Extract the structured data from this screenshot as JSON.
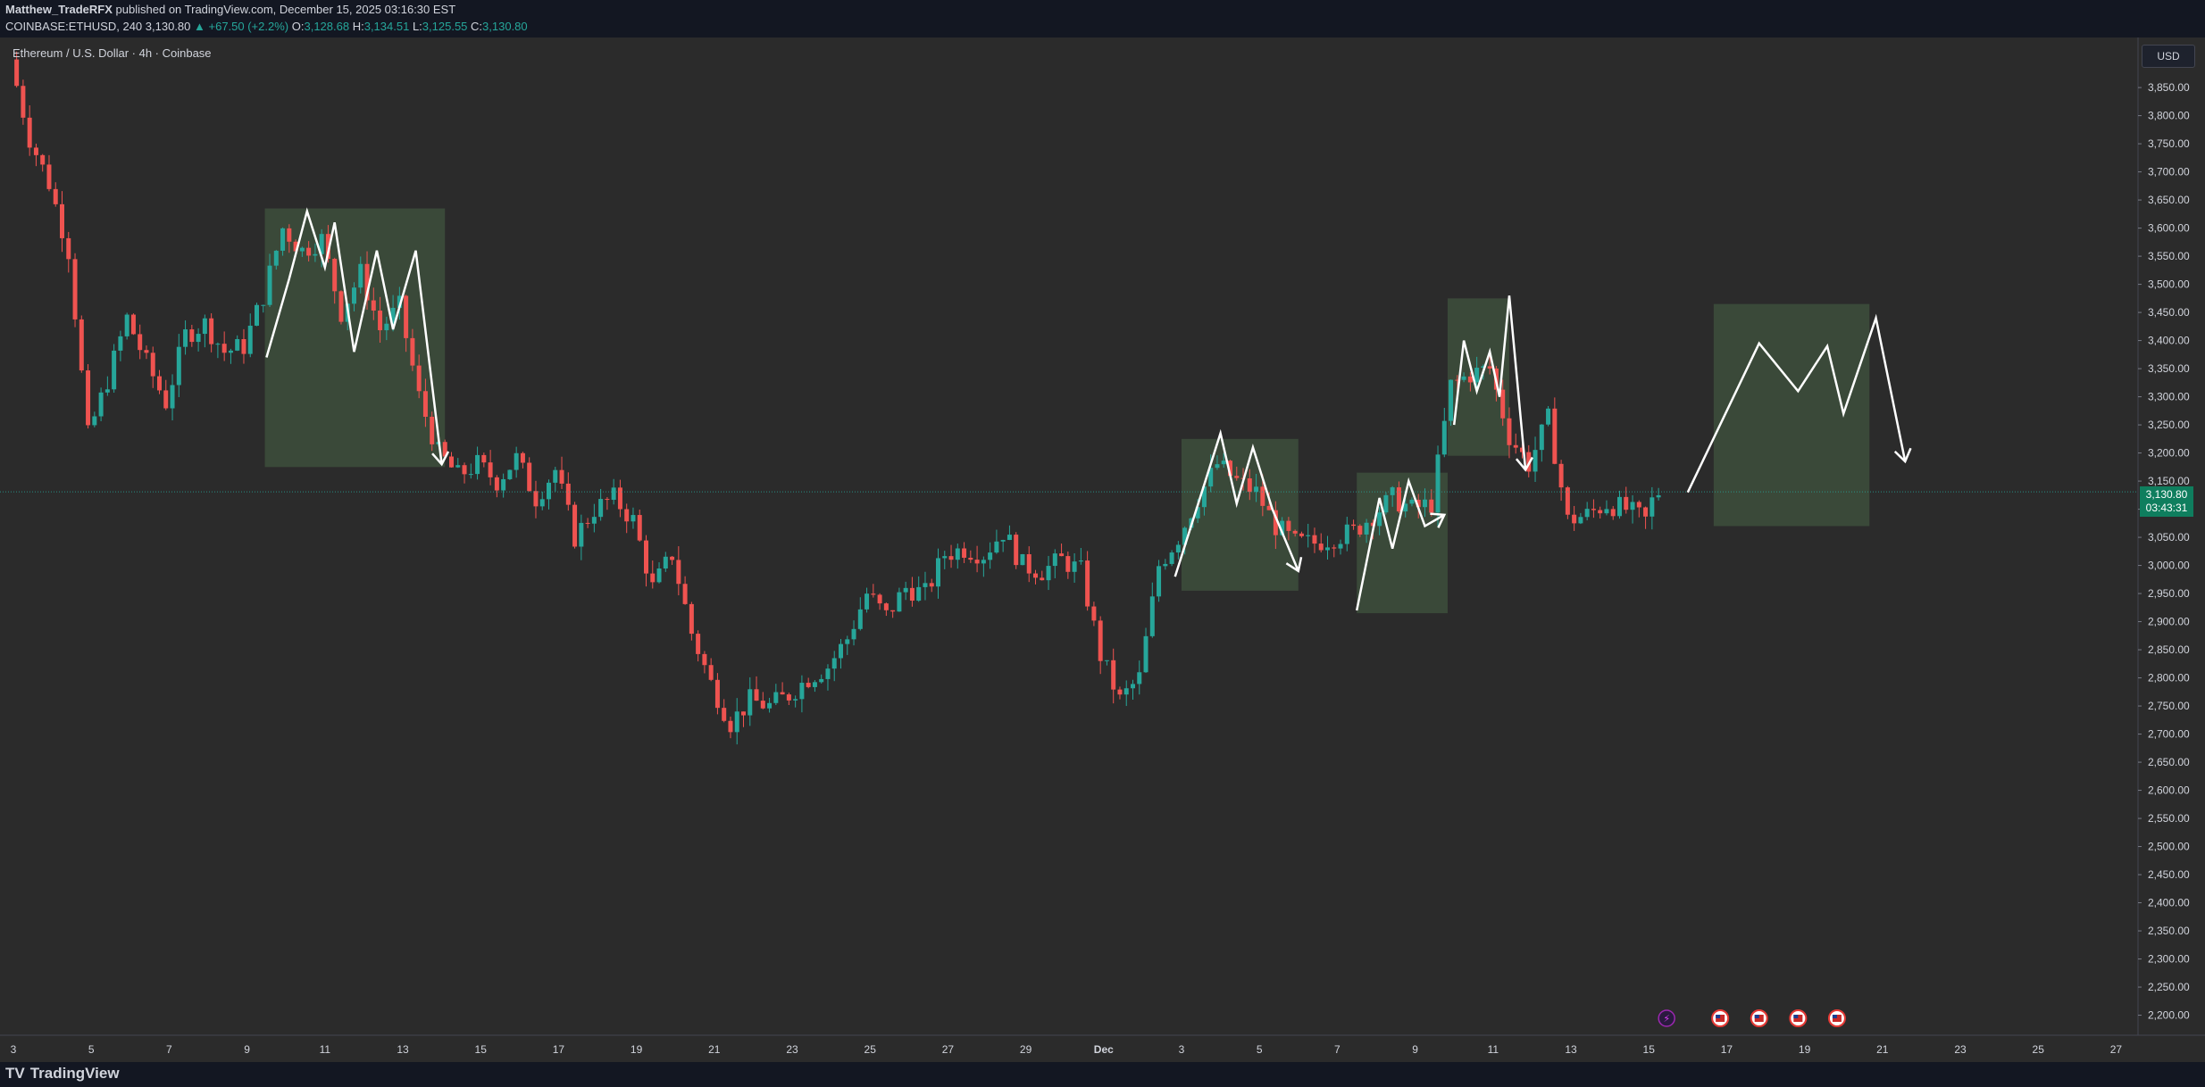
{
  "header": {
    "publisher": "Matthew_TradeRFX",
    "published_text": "published on TradingView.com, December 15, 2025 03:16:30 EST",
    "symbol": "COINBASE:ETHUSD, 240",
    "last": "3,130.80",
    "change": "▲ +67.50 (+2.2%)",
    "o_label": "O:",
    "o": "3,128.68",
    "h_label": "H:",
    "h": "3,134.51",
    "l_label": "L:",
    "l": "3,125.55",
    "c_label": "C:",
    "c": "3,130.80"
  },
  "toolbar": {
    "currency_button": "USD"
  },
  "price_tag": {
    "price": "3,130.80",
    "countdown": "03:43:31"
  },
  "footer": {
    "logo_mark": "TV",
    "logo_text": "TradingView"
  },
  "colors": {
    "up": "#26a69a",
    "down": "#ef5350",
    "zone_fill": "#3d4f3c",
    "background": "#2b2b2b",
    "drawing": "#ffffff",
    "last_price_line": "#26a69a"
  },
  "chart_data": {
    "type": "candlestick",
    "title": "Ethereum / U.S. Dollar · 4h · Coinbase",
    "symbol": "COINBASE:ETHUSD",
    "interval": "4h",
    "ylim": [
      2185,
      3920
    ],
    "xlim": [
      "2025-11-03",
      "2025-12-28"
    ],
    "last_price": 3130.8,
    "y_ticks": [
      "3,850.00",
      "3,800.00",
      "3,750.00",
      "3,700.00",
      "3,650.00",
      "3,600.00",
      "3,550.00",
      "3,500.00",
      "3,450.00",
      "3,400.00",
      "3,350.00",
      "3,300.00",
      "3,250.00",
      "3,200.00",
      "3,150.00",
      "3,100.00",
      "3,050.00",
      "3,000.00",
      "2,950.00",
      "2,900.00",
      "2,850.00",
      "2,800.00",
      "2,750.00",
      "2,700.00",
      "2,650.00",
      "2,600.00",
      "2,550.00",
      "2,500.00",
      "2,450.00",
      "2,400.00",
      "2,350.00",
      "2,300.00",
      "2,250.00",
      "2,200.00"
    ],
    "x_ticks": [
      {
        "label": "3",
        "date": "2025-11-03"
      },
      {
        "label": "5",
        "date": "2025-11-05"
      },
      {
        "label": "7",
        "date": "2025-11-07"
      },
      {
        "label": "9",
        "date": "2025-11-09"
      },
      {
        "label": "11",
        "date": "2025-11-11"
      },
      {
        "label": "13",
        "date": "2025-11-13"
      },
      {
        "label": "15",
        "date": "2025-11-15"
      },
      {
        "label": "17",
        "date": "2025-11-17"
      },
      {
        "label": "19",
        "date": "2025-11-19"
      },
      {
        "label": "21",
        "date": "2025-11-21"
      },
      {
        "label": "23",
        "date": "2025-11-23"
      },
      {
        "label": "25",
        "date": "2025-11-25"
      },
      {
        "label": "27",
        "date": "2025-11-27"
      },
      {
        "label": "29",
        "date": "2025-11-29"
      },
      {
        "label": "Dec",
        "date": "2025-12-01"
      },
      {
        "label": "3",
        "date": "2025-12-03"
      },
      {
        "label": "5",
        "date": "2025-12-05"
      },
      {
        "label": "7",
        "date": "2025-12-07"
      },
      {
        "label": "9",
        "date": "2025-12-09"
      },
      {
        "label": "11",
        "date": "2025-12-11"
      },
      {
        "label": "13",
        "date": "2025-12-13"
      },
      {
        "label": "15",
        "date": "2025-12-15"
      },
      {
        "label": "17",
        "date": "2025-12-17"
      },
      {
        "label": "19",
        "date": "2025-12-19"
      },
      {
        "label": "21",
        "date": "2025-12-21"
      },
      {
        "label": "23",
        "date": "2025-12-23"
      },
      {
        "label": "25",
        "date": "2025-12-25"
      },
      {
        "label": "27",
        "date": "2025-12-27"
      }
    ],
    "price_path": [
      [
        "2025-11-03",
        3900
      ],
      [
        "2025-11-03T12:00",
        3760
      ],
      [
        "2025-11-04",
        3680
      ],
      [
        "2025-11-04T12:00",
        3560
      ],
      [
        "2025-11-05",
        3230
      ],
      [
        "2025-11-05T12:00",
        3330
      ],
      [
        "2025-11-06",
        3440
      ],
      [
        "2025-11-06T12:00",
        3360
      ],
      [
        "2025-11-07",
        3290
      ],
      [
        "2025-11-07T12:00",
        3410
      ],
      [
        "2025-11-08",
        3430
      ],
      [
        "2025-11-08T12:00",
        3380
      ],
      [
        "2025-11-09",
        3390
      ],
      [
        "2025-11-09T12:00",
        3480
      ],
      [
        "2025-11-10",
        3600
      ],
      [
        "2025-11-10T12:00",
        3560
      ],
      [
        "2025-11-11",
        3580
      ],
      [
        "2025-11-11T12:00",
        3450
      ],
      [
        "2025-11-12",
        3520
      ],
      [
        "2025-11-12T12:00",
        3420
      ],
      [
        "2025-11-13",
        3460
      ],
      [
        "2025-11-13T12:00",
        3300
      ],
      [
        "2025-11-14",
        3200
      ],
      [
        "2025-11-14T12:00",
        3160
      ],
      [
        "2025-11-15",
        3180
      ],
      [
        "2025-11-15T12:00",
        3150
      ],
      [
        "2025-11-16",
        3190
      ],
      [
        "2025-11-16T12:00",
        3120
      ],
      [
        "2025-11-17",
        3170
      ],
      [
        "2025-11-17T12:00",
        3050
      ],
      [
        "2025-11-18",
        3100
      ],
      [
        "2025-11-18T12:00",
        3120
      ],
      [
        "2025-11-19",
        3080
      ],
      [
        "2025-11-19T12:00",
        2960
      ],
      [
        "2025-11-20",
        3020
      ],
      [
        "2025-11-20T12:00",
        2880
      ],
      [
        "2025-11-21",
        2790
      ],
      [
        "2025-11-21T12:00",
        2720
      ],
      [
        "2025-11-22",
        2760
      ],
      [
        "2025-11-22T12:00",
        2750
      ],
      [
        "2025-11-23",
        2770
      ],
      [
        "2025-11-23T12:00",
        2800
      ],
      [
        "2025-11-24",
        2820
      ],
      [
        "2025-11-24T12:00",
        2870
      ],
      [
        "2025-11-25",
        2950
      ],
      [
        "2025-11-25T12:00",
        2910
      ],
      [
        "2025-11-26",
        2960
      ],
      [
        "2025-11-26T12:00",
        2950
      ],
      [
        "2025-11-27",
        3020
      ],
      [
        "2025-11-27T12:00",
        3030
      ],
      [
        "2025-11-28",
        3020
      ],
      [
        "2025-11-28T12:00",
        3060
      ],
      [
        "2025-11-29",
        3000
      ],
      [
        "2025-11-29T12:00",
        2990
      ],
      [
        "2025-11-30",
        3010
      ],
      [
        "2025-11-30T12:00",
        2990
      ],
      [
        "2025-12-01",
        2840
      ],
      [
        "2025-12-01T12:00",
        2760
      ],
      [
        "2025-12-02",
        2800
      ],
      [
        "2025-12-02T12:00",
        3000
      ],
      [
        "2025-12-03",
        3050
      ],
      [
        "2025-12-03T12:00",
        3120
      ],
      [
        "2025-12-04",
        3180
      ],
      [
        "2025-12-04T12:00",
        3150
      ],
      [
        "2025-12-05",
        3130
      ],
      [
        "2025-12-05T12:00",
        3070
      ],
      [
        "2025-12-06",
        3040
      ],
      [
        "2025-12-06T12:00",
        3040
      ],
      [
        "2025-12-07",
        3050
      ],
      [
        "2025-12-07T12:00",
        3060
      ],
      [
        "2025-12-08",
        3090
      ],
      [
        "2025-12-08T12:00",
        3120
      ],
      [
        "2025-12-09",
        3100
      ],
      [
        "2025-12-09T12:00",
        3110
      ],
      [
        "2025-12-10",
        3320
      ],
      [
        "2025-12-10T12:00",
        3340
      ],
      [
        "2025-12-11",
        3350
      ],
      [
        "2025-12-11T12:00",
        3230
      ],
      [
        "2025-12-12",
        3180
      ],
      [
        "2025-12-12T12:00",
        3260
      ],
      [
        "2025-12-13",
        3080
      ],
      [
        "2025-12-13T12:00",
        3090
      ],
      [
        "2025-12-14",
        3110
      ],
      [
        "2025-12-14T12:00",
        3100
      ],
      [
        "2025-12-15",
        3080
      ],
      [
        "2025-12-15T06:00",
        3130.8
      ]
    ],
    "zones": [
      {
        "start": "2025-11-09T11:00",
        "end": "2025-11-14T02:00",
        "top": 3635,
        "bottom": 3175
      },
      {
        "start": "2025-12-03T00:00",
        "end": "2025-12-06T00:00",
        "top": 3225,
        "bottom": 2955
      },
      {
        "start": "2025-12-07T12:00",
        "end": "2025-12-09T20:00",
        "top": 3165,
        "bottom": 2915
      },
      {
        "start": "2025-12-09T20:00",
        "end": "2025-12-11T10:00",
        "top": 3475,
        "bottom": 3195
      },
      {
        "start": "2025-12-16T16:00",
        "end": "2025-12-20T16:00",
        "top": 3465,
        "bottom": 3070
      }
    ],
    "drawings": [
      {
        "points": [
          [
            "2025-11-09T12:00",
            3370
          ],
          [
            "2025-11-10T02:00",
            3510
          ],
          [
            "2025-11-10T13:00",
            3630
          ],
          [
            "2025-11-11T00:00",
            3530
          ],
          [
            "2025-11-11T06:00",
            3610
          ],
          [
            "2025-11-11T18:00",
            3380
          ],
          [
            "2025-11-12T08:00",
            3560
          ],
          [
            "2025-11-12T18:00",
            3420
          ],
          [
            "2025-11-13T08:00",
            3560
          ],
          [
            "2025-11-14T00:00",
            3180
          ]
        ],
        "arrow": true
      },
      {
        "points": [
          [
            "2025-12-02T20:00",
            2980
          ],
          [
            "2025-12-04T00:00",
            3235
          ],
          [
            "2025-12-04T10:00",
            3110
          ],
          [
            "2025-12-04T20:00",
            3210
          ],
          [
            "2025-12-05T08:00",
            3100
          ],
          [
            "2025-12-06T00:00",
            2990
          ]
        ],
        "arrow": true
      },
      {
        "points": [
          [
            "2025-12-07T12:00",
            2920
          ],
          [
            "2025-12-08T02:00",
            3120
          ],
          [
            "2025-12-08T10:00",
            3030
          ],
          [
            "2025-12-08T20:00",
            3150
          ],
          [
            "2025-12-09T06:00",
            3070
          ],
          [
            "2025-12-09T18:00",
            3090
          ]
        ],
        "arrow": true
      },
      {
        "points": [
          [
            "2025-12-10T00:00",
            3250
          ],
          [
            "2025-12-10T06:00",
            3400
          ],
          [
            "2025-12-10T14:00",
            3310
          ],
          [
            "2025-12-10T22:00",
            3380
          ],
          [
            "2025-12-11T04:00",
            3300
          ],
          [
            "2025-12-11T10:00",
            3480
          ],
          [
            "2025-12-11T20:00",
            3170
          ]
        ],
        "arrow": true
      },
      {
        "points": [
          [
            "2025-12-16T00:00",
            3130
          ],
          [
            "2025-12-17T20:00",
            3395
          ],
          [
            "2025-12-18T20:00",
            3310
          ],
          [
            "2025-12-19T14:00",
            3390
          ],
          [
            "2025-12-20T00:00",
            3270
          ],
          [
            "2025-12-20T20:00",
            3440
          ],
          [
            "2025-12-21T14:00",
            3185
          ]
        ],
        "arrow": true
      }
    ],
    "event_markers": [
      {
        "date": "2025-12-15T11:00",
        "icon": "bolt-icon"
      },
      {
        "date": "2025-12-16T20:00",
        "icon": "us-flag-icon"
      },
      {
        "date": "2025-12-17T20:00",
        "icon": "us-flag-icon"
      },
      {
        "date": "2025-12-18T20:00",
        "icon": "us-flag-icon"
      },
      {
        "date": "2025-12-19T20:00",
        "icon": "us-flag-icon"
      }
    ]
  }
}
